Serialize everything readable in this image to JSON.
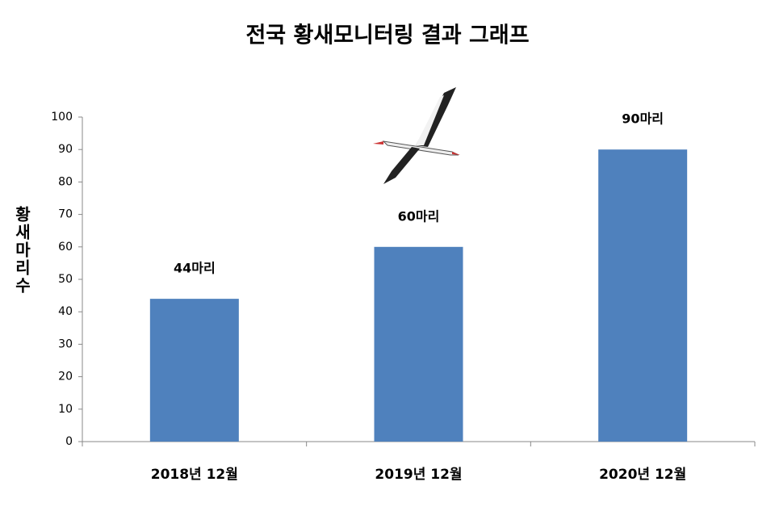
{
  "chart_data": {
    "type": "bar",
    "title": "전국 황새모니터링 결과 그래프",
    "y_label": "황새마리수",
    "categories": [
      "2018년 12월",
      "2019년 12월",
      "2020년 12월"
    ],
    "values": [
      44,
      60,
      90
    ],
    "value_labels": [
      "44마리",
      "60마리",
      "90마리"
    ],
    "color": "#4f81bd",
    "ylim": [
      0,
      100
    ],
    "yticks": [
      0,
      10,
      20,
      30,
      40,
      50,
      60,
      70,
      80,
      90,
      100
    ],
    "grid": false
  }
}
